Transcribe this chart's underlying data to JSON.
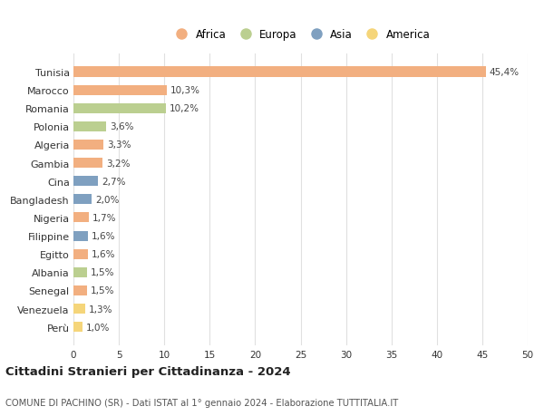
{
  "countries": [
    "Tunisia",
    "Marocco",
    "Romania",
    "Polonia",
    "Algeria",
    "Gambia",
    "Cina",
    "Bangladesh",
    "Nigeria",
    "Filippine",
    "Egitto",
    "Albania",
    "Senegal",
    "Venezuela",
    "Perù"
  ],
  "values": [
    45.4,
    10.3,
    10.2,
    3.6,
    3.3,
    3.2,
    2.7,
    2.0,
    1.7,
    1.6,
    1.6,
    1.5,
    1.5,
    1.3,
    1.0
  ],
  "labels": [
    "45,4%",
    "10,3%",
    "10,2%",
    "3,6%",
    "3,3%",
    "3,2%",
    "2,7%",
    "2,0%",
    "1,7%",
    "1,6%",
    "1,6%",
    "1,5%",
    "1,5%",
    "1,3%",
    "1,0%"
  ],
  "continents": [
    "Africa",
    "Africa",
    "Europa",
    "Europa",
    "Africa",
    "Africa",
    "Asia",
    "Asia",
    "Africa",
    "Asia",
    "Africa",
    "Europa",
    "Africa",
    "America",
    "America"
  ],
  "continent_colors": {
    "Africa": "#F2AF80",
    "Europa": "#BBCF90",
    "Asia": "#7FA0C0",
    "America": "#F5D57A"
  },
  "legend_order": [
    "Africa",
    "Europa",
    "Asia",
    "America"
  ],
  "title": "Cittadini Stranieri per Cittadinanza - 2024",
  "subtitle": "COMUNE DI PACHINO (SR) - Dati ISTAT al 1° gennaio 2024 - Elaborazione TUTTITALIA.IT",
  "xlim": [
    0,
    50
  ],
  "xticks": [
    0,
    5,
    10,
    15,
    20,
    25,
    30,
    35,
    40,
    45,
    50
  ],
  "background_color": "#ffffff",
  "grid_color": "#e0e0e0"
}
